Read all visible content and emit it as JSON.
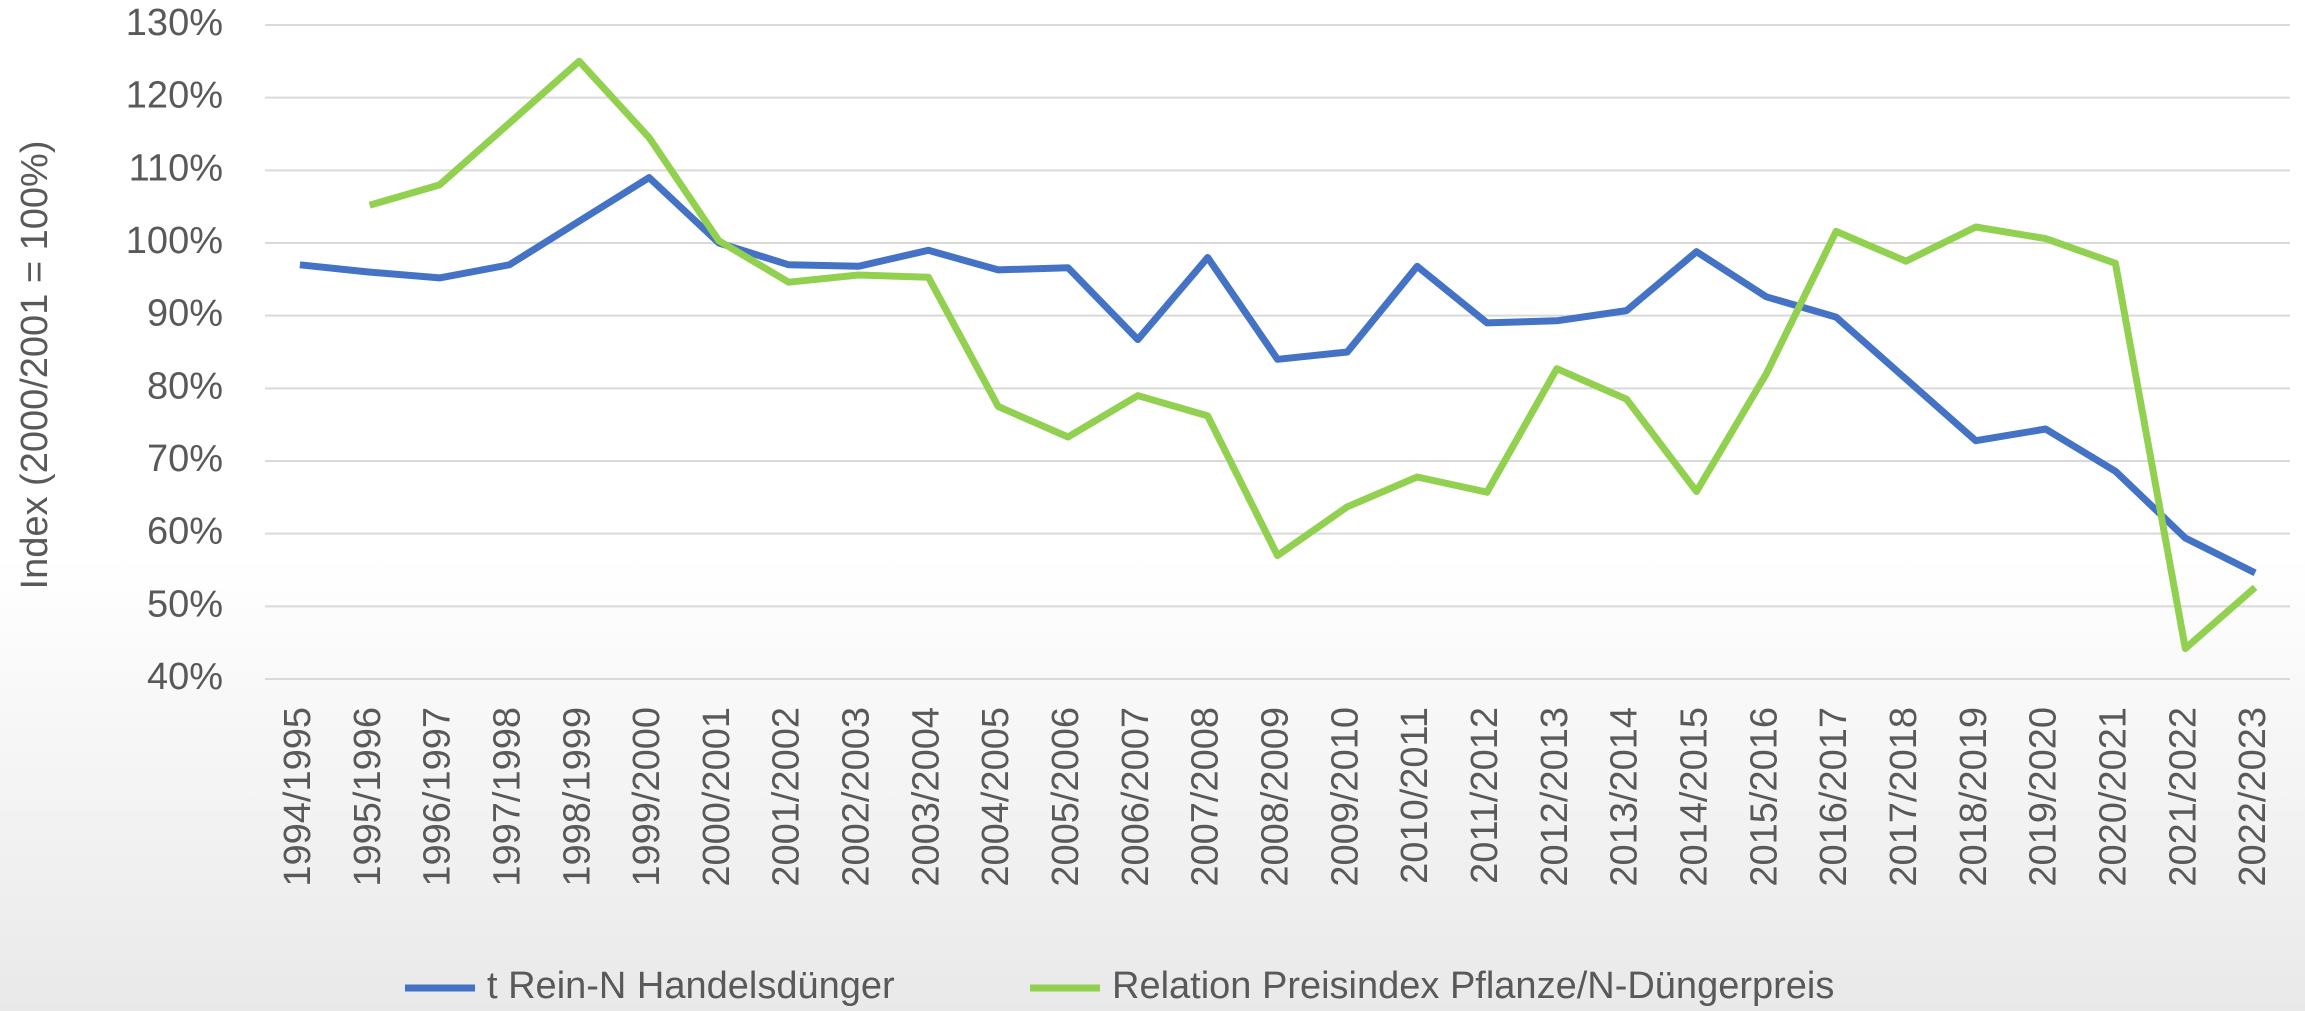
{
  "chart_data": {
    "type": "line",
    "y_axis_label": "Index (2000/2001 = 100%)",
    "categories": [
      "1994/1995",
      "1995/1996",
      "1996/1997",
      "1997/1998",
      "1998/1999",
      "1999/2000",
      "2000/2001",
      "2001/2002",
      "2002/2003",
      "2003/2004",
      "2004/2005",
      "2005/2006",
      "2006/2007",
      "2007/2008",
      "2008/2009",
      "2009/2010",
      "2010/2011",
      "2011/2012",
      "2012/2013",
      "2013/2014",
      "2014/2015",
      "2015/2016",
      "2016/2017",
      "2017/2018",
      "2018/2019",
      "2019/2020",
      "2020/2021",
      "2021/2022",
      "2022/2023"
    ],
    "series": [
      {
        "name": "t Rein-N Handelsdünger",
        "color": "#4472c4",
        "values": [
          97,
          96,
          95.2,
          97,
          103,
          109,
          100,
          97,
          96.8,
          99,
          96.3,
          96.6,
          86.7,
          98,
          84,
          85,
          96.8,
          89,
          89.3,
          90.7,
          98.8,
          92.6,
          89.8,
          81.3,
          72.8,
          74.4,
          68.6,
          59.4,
          54.6
        ]
      },
      {
        "name": "Relation Preisindex Pflanze/N-Düngerpreis",
        "color": "#92d050",
        "values": [
          null,
          105.2,
          108,
          116.5,
          125,
          114.5,
          100.3,
          94.6,
          95.6,
          95.3,
          77.5,
          73.3,
          79,
          76.2,
          57,
          63.7,
          67.8,
          65.7,
          82.7,
          78.5,
          65.8,
          82,
          101.6,
          97.5,
          102.2,
          100.6,
          97.2,
          44.2,
          52.6
        ]
      }
    ],
    "ylim": [
      40,
      130
    ],
    "yticks": [
      {
        "value": 40,
        "label": "40%"
      },
      {
        "value": 50,
        "label": "50%"
      },
      {
        "value": 60,
        "label": "60%"
      },
      {
        "value": 70,
        "label": "70%"
      },
      {
        "value": 80,
        "label": "80%"
      },
      {
        "value": 90,
        "label": "90%"
      },
      {
        "value": 100,
        "label": "100%"
      },
      {
        "value": 110,
        "label": "110%"
      },
      {
        "value": 120,
        "label": "120%"
      },
      {
        "value": 130,
        "label": "130%"
      }
    ],
    "grid": true,
    "legend": "bottom"
  }
}
